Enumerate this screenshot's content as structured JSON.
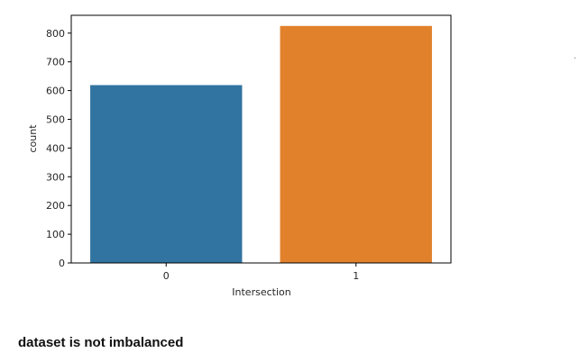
{
  "chart_data": {
    "type": "bar",
    "categories": [
      "0",
      "1"
    ],
    "values": [
      619,
      825
    ],
    "colors": [
      "#3274a1",
      "#e1812c"
    ],
    "xlabel": "Intersection",
    "ylabel": "count",
    "ylim": [
      0,
      862
    ],
    "yticks": [
      0,
      100,
      200,
      300,
      400,
      500,
      600,
      700,
      800
    ],
    "grid": false
  },
  "caption": {
    "text": "dataset is not imbalanced"
  },
  "stray_mark": "·"
}
